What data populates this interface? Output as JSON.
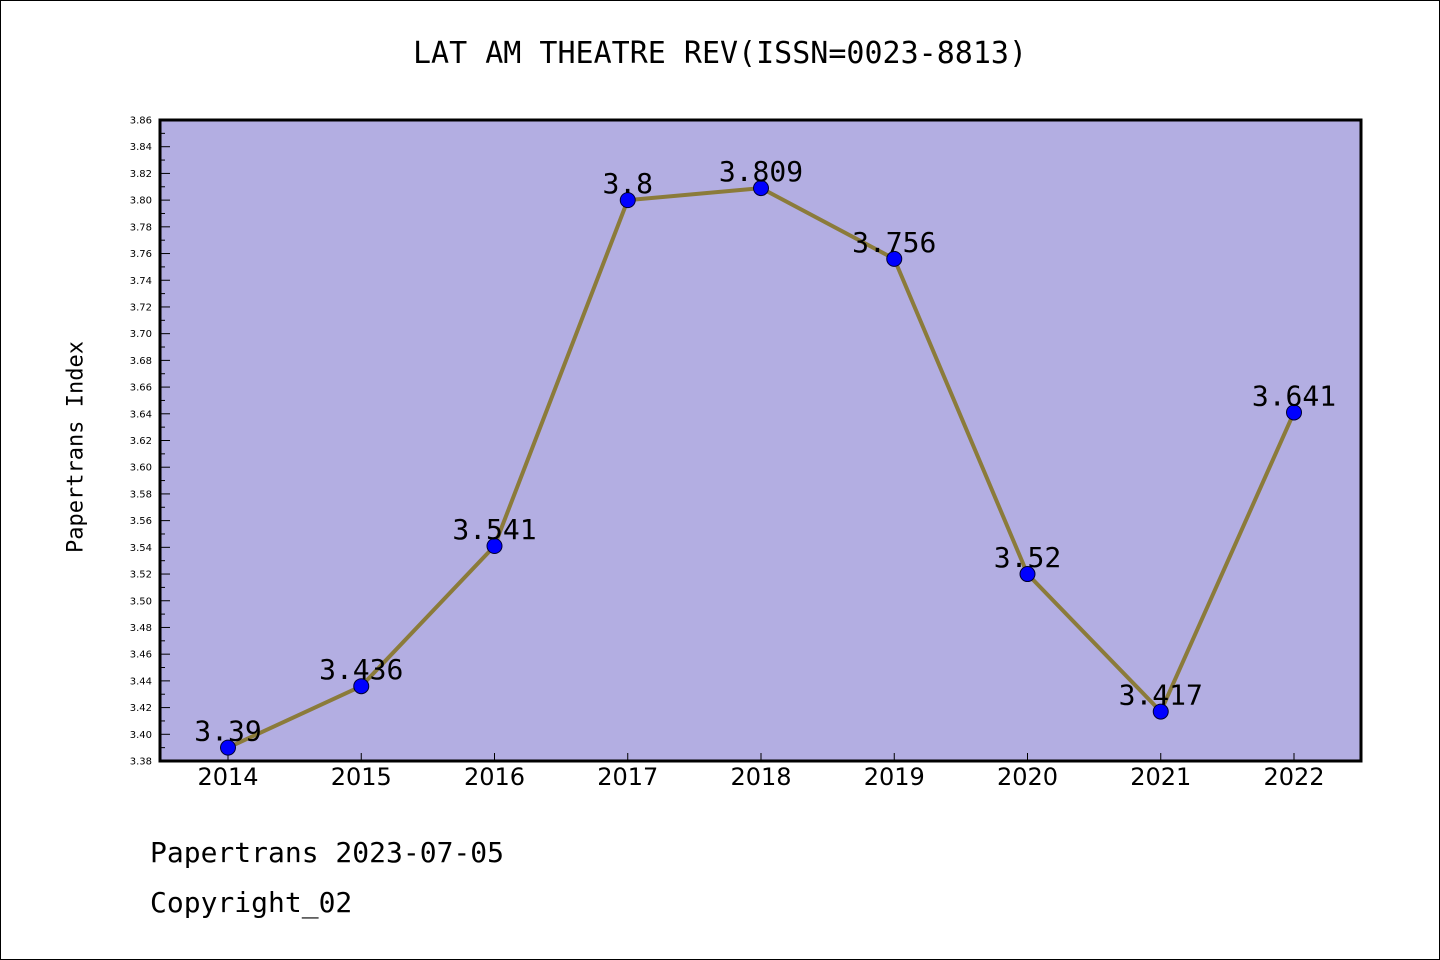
{
  "chart_data": {
    "type": "line",
    "title": "LAT AM THEATRE REV(ISSN=0023-8813)",
    "xlabel": "",
    "ylabel": "Papertrans Index",
    "categories": [
      "2014",
      "2015",
      "2016",
      "2017",
      "2018",
      "2019",
      "2020",
      "2021",
      "2022"
    ],
    "series": [
      {
        "values": [
          3.39,
          3.436,
          3.541,
          3.8,
          3.809,
          3.756,
          3.52,
          3.417,
          3.641
        ],
        "labels": [
          "3.39",
          "3.436",
          "3.541",
          "3.8",
          "3.809",
          "3.756",
          "3.52",
          "3.417",
          "3.641"
        ]
      }
    ],
    "ylim": [
      3.38,
      3.86
    ],
    "yticks": [
      "3.38",
      "3.40",
      "3.42",
      "3.44",
      "3.46",
      "3.48",
      "3.50",
      "3.52",
      "3.54",
      "3.56",
      "3.58",
      "3.60",
      "3.62",
      "3.64",
      "3.66",
      "3.68",
      "3.70",
      "3.72",
      "3.74",
      "3.76",
      "3.78",
      "3.80",
      "3.82",
      "3.84",
      "3.86"
    ],
    "grid": false,
    "colors": {
      "plot_background": "#b3aee2",
      "line": "#8b7b3a",
      "marker": "#0000ff"
    }
  },
  "footer": {
    "line1": "Papertrans 2023-07-05",
    "line2": "Copyright_02"
  }
}
